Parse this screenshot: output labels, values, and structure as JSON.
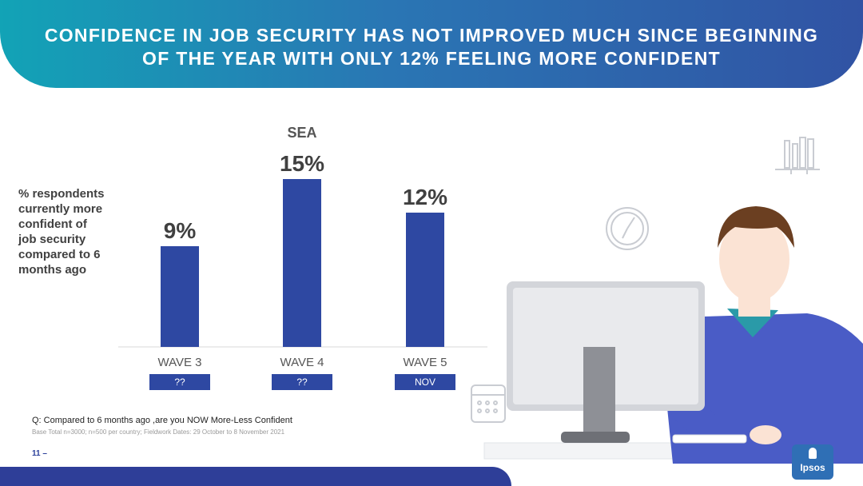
{
  "header": {
    "title": "CONFIDENCE IN JOB SECURITY HAS NOT IMPROVED MUCH SINCE BEGINNING OF THE YEAR WITH ONLY 12% FEELING MORE CONFIDENT"
  },
  "ylabel_text": "% respondents currently more confident of job security compared to 6 months ago",
  "chart_data": {
    "type": "bar",
    "title": "SEA",
    "categories": [
      "WAVE 3",
      "WAVE 4",
      "WAVE 5"
    ],
    "values": [
      9,
      15,
      12
    ],
    "data_labels": [
      "9%",
      "15%",
      "12%"
    ],
    "period_labels": [
      "??",
      "??",
      "NOV"
    ],
    "ylabel": "% respondents currently more confident of job security compared to 6 months ago",
    "ylim": [
      0,
      15
    ],
    "grid": false,
    "bar_color": "#2e48a2"
  },
  "footnote": {
    "question": "Q: Compared to 6 months ago ,are you NOW More-Less Confident",
    "base": "Base Total n=3000; n=500 per country; Fieldwork Dates: 29 October to 8 November 2021"
  },
  "page": {
    "number": "11",
    "dash": "–"
  },
  "brand": {
    "logo_text": "Ipsos",
    "logo_color": "#2f6fb5"
  },
  "icons": [
    "bookshelf-icon",
    "clock-icon",
    "calendar-icon",
    "computer-user-illustration"
  ]
}
